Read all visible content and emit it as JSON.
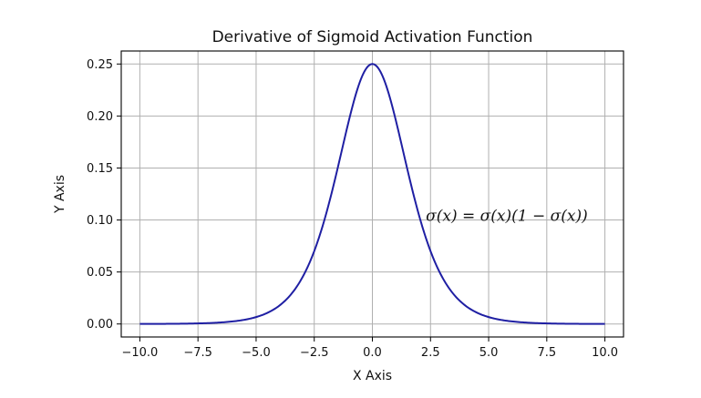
{
  "chart_data": {
    "type": "line",
    "title": "Derivative of Sigmoid Activation Function",
    "xlabel": "X Axis",
    "ylabel": "Y Axis",
    "xlim": [
      -10.8,
      10.8
    ],
    "ylim": [
      -0.0125,
      0.2625
    ],
    "xticks": [
      -10.0,
      -7.5,
      -5.0,
      -2.5,
      0.0,
      2.5,
      5.0,
      7.5,
      10.0
    ],
    "xtick_labels": [
      "−10.0",
      "−7.5",
      "−5.0",
      "−2.5",
      "0.0",
      "2.5",
      "5.0",
      "7.5",
      "10.0"
    ],
    "yticks": [
      0.0,
      0.05,
      0.1,
      0.15,
      0.2,
      0.25
    ],
    "ytick_labels": [
      "0.00",
      "0.05",
      "0.10",
      "0.15",
      "0.20",
      "0.25"
    ],
    "grid": true,
    "line_color": "#1f1fa3",
    "series": [
      {
        "x": [
          -10,
          -9,
          -8,
          -7,
          -6,
          -5.5,
          -5,
          -4.5,
          -4,
          -3.5,
          -3,
          -2.5,
          -2,
          -1.5,
          -1,
          -0.5,
          0,
          0.5,
          1,
          1.5,
          2,
          2.5,
          3,
          3.5,
          4,
          4.5,
          5,
          5.5,
          6,
          7,
          8,
          9,
          10
        ],
        "values": [
          5e-05,
          0.00012,
          0.00034,
          0.00091,
          0.00247,
          0.00405,
          0.00665,
          0.01085,
          0.01766,
          0.02836,
          0.04518,
          0.0701,
          0.10499,
          0.14914,
          0.19661,
          0.235,
          0.25,
          0.235,
          0.19661,
          0.14914,
          0.10499,
          0.0701,
          0.04518,
          0.02836,
          0.01766,
          0.01085,
          0.00665,
          0.00405,
          0.00247,
          0.00091,
          0.00034,
          0.00012,
          5e-05
        ]
      }
    ],
    "annotation": {
      "text": "σ(x)  = σ(x)(1 − σ(x))",
      "x": 2.3,
      "y": 0.1
    }
  }
}
